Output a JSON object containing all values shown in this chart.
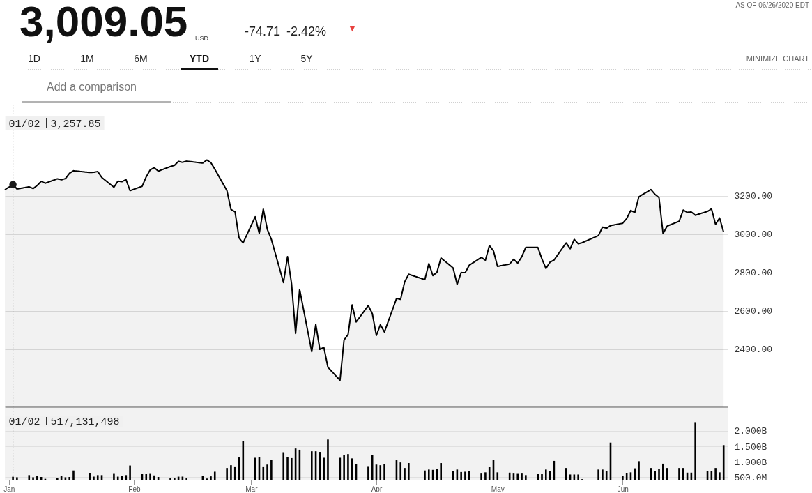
{
  "chart_data": [
    {
      "type": "area",
      "title": "3,009.05",
      "series": [
        {
          "type": "area",
          "color": "#000000",
          "x": [
            "2019-12-31",
            "2020-01-02",
            "2020-01-03",
            "2020-01-06",
            "2020-01-07",
            "2020-01-08",
            "2020-01-09",
            "2020-01-10",
            "2020-01-13",
            "2020-01-14",
            "2020-01-15",
            "2020-01-16",
            "2020-01-17",
            "2020-01-21",
            "2020-01-22",
            "2020-01-23",
            "2020-01-24",
            "2020-01-27",
            "2020-01-28",
            "2020-01-29",
            "2020-01-30",
            "2020-01-31",
            "2020-02-03",
            "2020-02-04",
            "2020-02-05",
            "2020-02-06",
            "2020-02-07",
            "2020-02-10",
            "2020-02-11",
            "2020-02-12",
            "2020-02-13",
            "2020-02-14",
            "2020-02-18",
            "2020-02-19",
            "2020-02-20",
            "2020-02-21",
            "2020-02-24",
            "2020-02-25",
            "2020-02-26",
            "2020-02-27",
            "2020-02-28",
            "2020-03-02",
            "2020-03-03",
            "2020-03-04",
            "2020-03-05",
            "2020-03-06",
            "2020-03-09",
            "2020-03-10",
            "2020-03-11",
            "2020-03-12",
            "2020-03-13",
            "2020-03-16",
            "2020-03-17",
            "2020-03-18",
            "2020-03-19",
            "2020-03-20",
            "2020-03-23",
            "2020-03-24",
            "2020-03-25",
            "2020-03-26",
            "2020-03-27",
            "2020-03-30",
            "2020-03-31",
            "2020-04-01",
            "2020-04-02",
            "2020-04-03",
            "2020-04-06",
            "2020-04-07",
            "2020-04-08",
            "2020-04-09",
            "2020-04-13",
            "2020-04-14",
            "2020-04-15",
            "2020-04-16",
            "2020-04-17",
            "2020-04-20",
            "2020-04-21",
            "2020-04-22",
            "2020-04-23",
            "2020-04-24",
            "2020-04-27",
            "2020-04-28",
            "2020-04-29",
            "2020-04-30",
            "2020-05-01",
            "2020-05-04",
            "2020-05-05",
            "2020-05-06",
            "2020-05-07",
            "2020-05-08",
            "2020-05-11",
            "2020-05-12",
            "2020-05-13",
            "2020-05-14",
            "2020-05-15",
            "2020-05-18",
            "2020-05-19",
            "2020-05-20",
            "2020-05-21",
            "2020-05-22",
            "2020-05-26",
            "2020-05-27",
            "2020-05-28",
            "2020-05-29",
            "2020-06-01",
            "2020-06-02",
            "2020-06-03",
            "2020-06-04",
            "2020-06-05",
            "2020-06-08",
            "2020-06-09",
            "2020-06-10",
            "2020-06-11",
            "2020-06-12",
            "2020-06-15",
            "2020-06-16",
            "2020-06-17",
            "2020-06-18",
            "2020-06-19",
            "2020-06-22",
            "2020-06-23",
            "2020-06-24",
            "2020-06-25",
            "2020-06-26"
          ],
          "values": [
            3231,
            3257.85,
            3235,
            3246,
            3237,
            3253,
            3275,
            3265,
            3288,
            3283,
            3289,
            3317,
            3330,
            3321,
            3322,
            3326,
            3295,
            3244,
            3276,
            3273,
            3284,
            3226,
            3249,
            3298,
            3335,
            3346,
            3328,
            3352,
            3358,
            3379,
            3374,
            3380,
            3370,
            3386,
            3373,
            3338,
            3226,
            3128,
            3116,
            2979,
            2954,
            3090,
            3003,
            3130,
            3024,
            2972,
            2747,
            2882,
            2741,
            2481,
            2711,
            2386,
            2529,
            2398,
            2409,
            2305,
            2237,
            2447,
            2476,
            2630,
            2541,
            2627,
            2585,
            2471,
            2527,
            2489,
            2664,
            2659,
            2750,
            2790,
            2762,
            2846,
            2783,
            2800,
            2875,
            2823,
            2737,
            2799,
            2798,
            2837,
            2878,
            2863,
            2940,
            2912,
            2831,
            2843,
            2868,
            2848,
            2881,
            2930,
            2930,
            2870,
            2820,
            2853,
            2864,
            2954,
            2923,
            2972,
            2949,
            2955,
            2992,
            3036,
            3030,
            3044,
            3056,
            3081,
            3123,
            3112,
            3194,
            3232,
            3207,
            3190,
            3002,
            3041,
            3067,
            3125,
            3113,
            3115,
            3098,
            3118,
            3131,
            3050,
            3084,
            3009.05
          ]
        },
        {
          "type": "scatter",
          "color": "#1a1a1a",
          "marker": "circle",
          "x": [
            "2020-01-02"
          ],
          "values": [
            3257.85
          ]
        }
      ],
      "xlim": [
        "2019-12-31",
        "2020-06-27"
      ],
      "ylim": [
        2100,
        3675
      ],
      "yticks": [
        {
          "value": 2400,
          "label": "2400.00"
        },
        {
          "value": 2600,
          "label": "2600.00"
        },
        {
          "value": 2800,
          "label": "2800.00"
        },
        {
          "value": 3000,
          "label": "3000.00"
        },
        {
          "value": 3200,
          "label": "3200.00"
        }
      ],
      "grid": "y",
      "tick_labels": "y",
      "ref_lines": [
        {
          "axis": "x",
          "value": "2020-01-02",
          "label": "01/02",
          "line_style": "dotted"
        }
      ],
      "annotations": [
        "USD",
        "-74.71",
        "-2.42%",
        "▼",
        "AS OF 06/26/2020 EDT",
        "1D",
        "1M",
        "6M",
        "YTD",
        "1Y",
        "5Y",
        "MINIMIZE CHART",
        "Add a comparison",
        "3,257.85"
      ]
    },
    {
      "type": "bar",
      "color": "#000000",
      "x": [
        "2020-01-02",
        "2020-01-03",
        "2020-01-06",
        "2020-01-07",
        "2020-01-08",
        "2020-01-09",
        "2020-01-10",
        "2020-01-13",
        "2020-01-14",
        "2020-01-15",
        "2020-01-16",
        "2020-01-17",
        "2020-01-21",
        "2020-01-22",
        "2020-01-23",
        "2020-01-24",
        "2020-01-27",
        "2020-01-28",
        "2020-01-29",
        "2020-01-30",
        "2020-01-31",
        "2020-02-03",
        "2020-02-04",
        "2020-02-05",
        "2020-02-06",
        "2020-02-07",
        "2020-02-10",
        "2020-02-11",
        "2020-02-12",
        "2020-02-13",
        "2020-02-14",
        "2020-02-18",
        "2020-02-19",
        "2020-02-20",
        "2020-02-21",
        "2020-02-24",
        "2020-02-25",
        "2020-02-26",
        "2020-02-27",
        "2020-02-28",
        "2020-03-02",
        "2020-03-03",
        "2020-03-04",
        "2020-03-05",
        "2020-03-06",
        "2020-03-09",
        "2020-03-10",
        "2020-03-11",
        "2020-03-12",
        "2020-03-13",
        "2020-03-16",
        "2020-03-17",
        "2020-03-18",
        "2020-03-19",
        "2020-03-20",
        "2020-03-23",
        "2020-03-24",
        "2020-03-25",
        "2020-03-26",
        "2020-03-27",
        "2020-03-30",
        "2020-03-31",
        "2020-04-01",
        "2020-04-02",
        "2020-04-03",
        "2020-04-06",
        "2020-04-07",
        "2020-04-08",
        "2020-04-09",
        "2020-04-13",
        "2020-04-14",
        "2020-04-15",
        "2020-04-16",
        "2020-04-17",
        "2020-04-20",
        "2020-04-21",
        "2020-04-22",
        "2020-04-23",
        "2020-04-24",
        "2020-04-27",
        "2020-04-28",
        "2020-04-29",
        "2020-04-30",
        "2020-05-01",
        "2020-05-04",
        "2020-05-05",
        "2020-05-06",
        "2020-05-07",
        "2020-05-08",
        "2020-05-11",
        "2020-05-12",
        "2020-05-13",
        "2020-05-14",
        "2020-05-15",
        "2020-05-18",
        "2020-05-19",
        "2020-05-20",
        "2020-05-21",
        "2020-05-22",
        "2020-05-26",
        "2020-05-27",
        "2020-05-28",
        "2020-05-29",
        "2020-06-01",
        "2020-06-02",
        "2020-06-03",
        "2020-06-04",
        "2020-06-05",
        "2020-06-08",
        "2020-06-09",
        "2020-06-10",
        "2020-06-11",
        "2020-06-12",
        "2020-06-15",
        "2020-06-16",
        "2020-06-17",
        "2020-06-18",
        "2020-06-19",
        "2020-06-22",
        "2020-06-23",
        "2020-06-24",
        "2020-06-25",
        "2020-06-26"
      ],
      "values": [
        517131498,
        500000000,
        570000000,
        500000000,
        540000000,
        510000000,
        450000000,
        480000000,
        550000000,
        500000000,
        510000000,
        720000000,
        640000000,
        520000000,
        570000000,
        570000000,
        610000000,
        520000000,
        540000000,
        570000000,
        880000000,
        600000000,
        600000000,
        610000000,
        560000000,
        510000000,
        480000000,
        480000000,
        520000000,
        520000000,
        480000000,
        550000000,
        460000000,
        530000000,
        680000000,
        800000000,
        890000000,
        850000000,
        1140000000,
        1670000000,
        1130000000,
        1150000000,
        850000000,
        910000000,
        1070000000,
        1310000000,
        1160000000,
        1120000000,
        1430000000,
        1390000000,
        1340000000,
        1340000000,
        1320000000,
        1130000000,
        1720000000,
        1130000000,
        1220000000,
        1250000000,
        1110000000,
        920000000,
        860000000,
        1220000000,
        910000000,
        890000000,
        930000000,
        1050000000,
        980000000,
        800000000,
        960000000,
        720000000,
        750000000,
        740000000,
        760000000,
        960000000,
        710000000,
        750000000,
        670000000,
        680000000,
        710000000,
        620000000,
        660000000,
        830000000,
        1070000000,
        660000000,
        650000000,
        620000000,
        610000000,
        620000000,
        570000000,
        600000000,
        600000000,
        750000000,
        710000000,
        1030000000,
        800000000,
        590000000,
        590000000,
        590000000,
        440000000,
        750000000,
        750000000,
        690000000,
        1620000000,
        540000000,
        630000000,
        660000000,
        790000000,
        1020000000,
        800000000,
        710000000,
        770000000,
        940000000,
        800000000,
        800000000,
        800000000,
        650000000,
        650000000,
        2280000000,
        710000000,
        710000000,
        800000000,
        660000000,
        1540000000
      ],
      "xlim": [
        "2019-12-31",
        "2020-06-27"
      ],
      "xticks": [
        {
          "value": "2020-01-01",
          "label": "Jan"
        },
        {
          "value": "2020-02-01",
          "label": "Feb"
        },
        {
          "value": "2020-03-01",
          "label": "Mar"
        },
        {
          "value": "2020-04-01",
          "label": "Apr"
        },
        {
          "value": "2020-05-01",
          "label": "May"
        },
        {
          "value": "2020-06-01",
          "label": "Jun"
        }
      ],
      "ylim": [
        420000000,
        2740000000
      ],
      "yticks": [
        {
          "value": 500000000,
          "label": "500.0M"
        },
        {
          "value": 1000000000,
          "label": "1.000B"
        },
        {
          "value": 1500000000,
          "label": "1.500B"
        },
        {
          "value": 2000000000,
          "label": "2.000B"
        }
      ],
      "grid": "y",
      "ref_lines": [
        {
          "axis": "x",
          "value": "2020-01-02",
          "label": "01/02",
          "line_style": "dotted"
        }
      ],
      "annotations": [
        "517,131,498"
      ]
    }
  ]
}
